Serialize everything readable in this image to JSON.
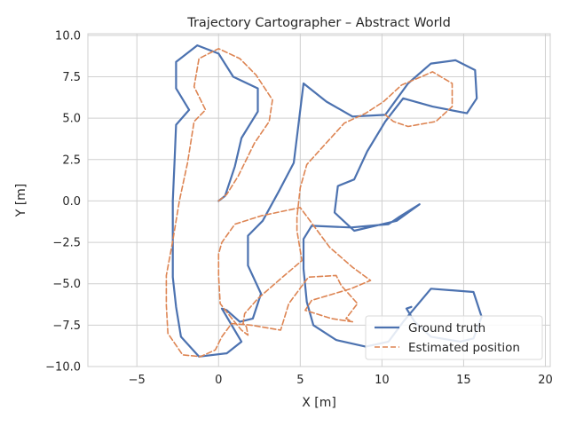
{
  "chart_data": {
    "type": "line",
    "title": "Trajectory Cartographer – Abstract World",
    "xlabel": "X [m]",
    "ylabel": "Y [m]",
    "xlim": [
      -8,
      20.3
    ],
    "ylim": [
      -10,
      10.1
    ],
    "xticks": [
      -5,
      0,
      5,
      10,
      15,
      20
    ],
    "yticks": [
      -10,
      -7.5,
      -5,
      -2.5,
      0,
      2.5,
      5,
      7.5,
      10
    ],
    "xtick_labels": [
      "−5",
      "0",
      "5",
      "10",
      "15",
      "20"
    ],
    "ytick_labels": [
      "−10.0",
      "−7.5",
      "−5.0",
      "−2.5",
      "0.0",
      "2.5",
      "5.0",
      "7.5",
      "10.0"
    ],
    "grid": true,
    "legend_position": "bottom-right",
    "series": [
      {
        "name": "Ground truth",
        "color": "#4c72b0",
        "style": "solid",
        "x": [
          0.0,
          0.4,
          1.0,
          1.4,
          2.4,
          2.4,
          0.9,
          0.0,
          -1.3,
          -2.6,
          -2.6,
          -1.8,
          -2.6,
          -2.7,
          -2.8,
          -2.8,
          -2.8,
          -2.6,
          -2.3,
          -1.2,
          0.5,
          1.4,
          0.2,
          0.5,
          1.3,
          2.1,
          2.6,
          1.8,
          1.8,
          2.7,
          3.7,
          4.6,
          5.2,
          6.6,
          8.2,
          10.2,
          11.6,
          13.0,
          14.5,
          15.7,
          15.8,
          15.2,
          13.1,
          11.3,
          10.2,
          9.1,
          8.3,
          7.3,
          7.1,
          8.3,
          10.9,
          12.3,
          11.0,
          10.4,
          8.1,
          5.7,
          5.2,
          5.2,
          5.4,
          5.8,
          7.2,
          9.0,
          10.4,
          11.3,
          13.0,
          15.6,
          16.1,
          15.6,
          14.8,
          13.0,
          12.0,
          11.5,
          11.8
        ],
        "y": [
          0.0,
          0.3,
          2.1,
          3.8,
          5.4,
          6.8,
          7.5,
          8.9,
          9.4,
          8.4,
          6.8,
          5.5,
          4.6,
          2.3,
          0.0,
          -2.3,
          -4.6,
          -6.4,
          -8.2,
          -9.4,
          -9.2,
          -8.5,
          -6.5,
          -6.6,
          -7.3,
          -7.1,
          -5.6,
          -3.9,
          -2.1,
          -1.2,
          0.6,
          2.3,
          7.1,
          6.0,
          5.1,
          5.2,
          7.1,
          8.3,
          8.5,
          7.9,
          6.2,
          5.3,
          5.7,
          6.2,
          4.8,
          3.0,
          1.3,
          0.9,
          -0.7,
          -1.8,
          -1.2,
          -0.2,
          -1.0,
          -1.4,
          -1.6,
          -1.5,
          -2.3,
          -4.1,
          -6.1,
          -7.5,
          -8.4,
          -8.8,
          -8.5,
          -7.3,
          -5.3,
          -5.5,
          -7.0,
          -8.3,
          -8.5,
          -8.2,
          -7.3,
          -6.5,
          -6.4
        ]
      },
      {
        "name": "Estimated position",
        "color": "#dd8452",
        "style": "dashed",
        "x": [
          0.0,
          0.5,
          1.2,
          2.2,
          3.1,
          3.3,
          2.3,
          1.3,
          0.0,
          -1.2,
          -1.5,
          -0.8,
          -1.5,
          -1.9,
          -2.4,
          -2.8,
          -3.2,
          -3.2,
          -3.1,
          -2.2,
          -1.1,
          -0.2,
          0.2,
          0.8,
          2.0,
          3.8,
          4.3,
          5.5,
          7.2,
          7.5,
          8.5,
          7.8,
          8.2,
          6.9,
          5.3,
          5.7,
          8.1,
          9.3,
          8.2,
          6.8,
          5.0,
          2.6,
          1.0,
          0.2,
          0.0,
          0.0,
          0.1,
          0.9,
          1.4,
          1.8,
          1.7,
          1.5,
          1.6,
          2.4,
          3.8,
          5.1,
          4.8,
          4.8,
          5.0,
          5.4,
          6.5,
          7.7,
          9.0,
          10.1,
          11.2,
          12.4,
          13.1,
          14.3,
          14.3,
          13.3,
          11.6,
          10.7,
          10.2
        ],
        "y": [
          0.0,
          0.4,
          1.5,
          3.5,
          4.8,
          6.1,
          7.6,
          8.6,
          9.2,
          8.6,
          6.9,
          5.5,
          4.8,
          2.3,
          0.0,
          -2.4,
          -4.5,
          -6.3,
          -8.0,
          -9.3,
          -9.4,
          -9.0,
          -8.2,
          -7.4,
          -7.5,
          -7.8,
          -6.2,
          -4.6,
          -4.5,
          -5.1,
          -6.2,
          -7.1,
          -7.3,
          -7.1,
          -6.6,
          -6.0,
          -5.3,
          -4.8,
          -4.0,
          -2.8,
          -0.4,
          -0.9,
          -1.4,
          -2.5,
          -3.2,
          -4.5,
          -6.2,
          -7.2,
          -7.8,
          -8.1,
          -7.6,
          -7.4,
          -6.8,
          -5.9,
          -4.7,
          -3.6,
          -1.8,
          -1.0,
          0.8,
          2.2,
          3.4,
          4.7,
          5.3,
          6.0,
          7.0,
          7.5,
          7.8,
          7.1,
          5.7,
          4.8,
          4.5,
          4.8,
          5.2
        ]
      }
    ]
  }
}
